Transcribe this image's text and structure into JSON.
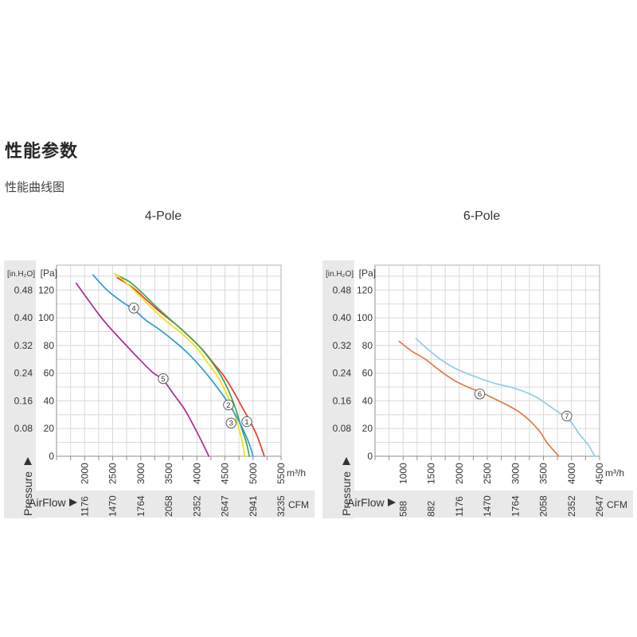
{
  "page": {
    "title": "性能参数",
    "subtitle": "性能曲线图"
  },
  "colors": {
    "band": "#e9e9e9",
    "grid": "#d8d8d8",
    "border": "#b2b2b2",
    "axis": "#8f8f8f",
    "text": "#333333",
    "circle_stroke": "#4a4a4a"
  },
  "chart_data": [
    {
      "name": "4-Pole",
      "type": "line",
      "xlabel": "AirFlow",
      "ylabel": "Pressure",
      "x_unit_primary": "m³/h",
      "x_unit_secondary": "CFM",
      "y_unit_primary": "[Pa]",
      "y_unit_secondary": "[in.H₂O]",
      "x_range": [
        1500,
        5500
      ],
      "y_range": [
        0,
        138
      ],
      "x_minor_step": 250,
      "y_minor_step": 10,
      "x_ticks_m3h": [
        "2000",
        "2500",
        "3000",
        "3500",
        "4000",
        "4500",
        "5000",
        "5500"
      ],
      "x_ticks_cfm": [
        "1176",
        "1470",
        "1764",
        "2058",
        "2352",
        "2647",
        "2941",
        "3235"
      ],
      "y_ticks_pa": [
        "120",
        "100",
        "80",
        "60",
        "40",
        "20",
        "0"
      ],
      "y_ticks_inh2o": [
        "0.48",
        "0.40",
        "0.32",
        "0.24",
        "0.16",
        "0.08"
      ],
      "series": [
        {
          "label": "1",
          "color": "#e63a2e",
          "points": [
            [
              2580,
              129
            ],
            [
              2850,
              122
            ],
            [
              3100,
              113
            ],
            [
              3350,
              104
            ],
            [
              3600,
              96
            ],
            [
              3850,
              87
            ],
            [
              4100,
              77
            ],
            [
              4300,
              67
            ],
            [
              4480,
              58
            ],
            [
              4650,
              47
            ],
            [
              4800,
              36
            ],
            [
              4950,
              25
            ],
            [
              5080,
              14
            ],
            [
              5200,
              0
            ]
          ],
          "label_at": [
            4890,
            25
          ]
        },
        {
          "label": "2",
          "color": "#3ea54b",
          "points": [
            [
              2560,
              131
            ],
            [
              2800,
              126
            ],
            [
              3050,
              117
            ],
            [
              3300,
              107
            ],
            [
              3550,
              98
            ],
            [
              3800,
              89
            ],
            [
              4050,
              79
            ],
            [
              4250,
              69
            ],
            [
              4430,
              58
            ],
            [
              4580,
              46
            ],
            [
              4700,
              33
            ],
            [
              4800,
              20
            ],
            [
              4880,
              10
            ],
            [
              4935,
              0
            ]
          ],
          "label_at": [
            4563,
            37
          ]
        },
        {
          "label": "3",
          "color": "#f2e115",
          "points": [
            [
              2535,
              132
            ],
            [
              2750,
              125
            ],
            [
              3000,
              115
            ],
            [
              3250,
              105
            ],
            [
              3500,
              96
            ],
            [
              3750,
              88
            ],
            [
              4000,
              78
            ],
            [
              4200,
              67
            ],
            [
              4380,
              57
            ],
            [
              4530,
              45
            ],
            [
              4650,
              33
            ],
            [
              4750,
              20
            ],
            [
              4810,
              10
            ],
            [
              4850,
              0
            ]
          ],
          "label_at": [
            4610,
            24
          ]
        },
        {
          "label": "4",
          "color": "#2c9cd4",
          "points": [
            [
              2150,
              131
            ],
            [
              2400,
              120
            ],
            [
              2650,
              112
            ],
            [
              2875,
              106
            ],
            [
              3100,
              98
            ],
            [
              3350,
              91
            ],
            [
              3600,
              83
            ],
            [
              3850,
              74
            ],
            [
              4100,
              63
            ],
            [
              4300,
              53
            ],
            [
              4500,
              42
            ],
            [
              4700,
              29
            ],
            [
              4850,
              17
            ],
            [
              4950,
              7
            ],
            [
              5000,
              0
            ]
          ],
          "label_at": [
            2876,
            107
          ]
        },
        {
          "label": "5",
          "color": "#a62d93",
          "points": [
            [
              1850,
              125
            ],
            [
              2080,
              112
            ],
            [
              2320,
              99
            ],
            [
              2560,
              88
            ],
            [
              2930,
              72
            ],
            [
              3200,
              61
            ],
            [
              3400,
              55
            ],
            [
              3600,
              44
            ],
            [
              3780,
              34
            ],
            [
              3930,
              23
            ],
            [
              4070,
              12
            ],
            [
              4213,
              0
            ]
          ],
          "label_at": [
            3400,
            56
          ]
        }
      ]
    },
    {
      "name": "6-Pole",
      "type": "line",
      "xlabel": "AirFlow",
      "ylabel": "Pressure",
      "x_unit_primary": "m³/h",
      "x_unit_secondary": "CFM",
      "y_unit_primary": "[Pa]",
      "y_unit_secondary": "[in.H₂O]",
      "x_range": [
        500,
        4500
      ],
      "y_range": [
        0,
        138
      ],
      "x_minor_step": 250,
      "y_minor_step": 10,
      "x_ticks_m3h": [
        "1000",
        "1500",
        "2000",
        "2500",
        "3000",
        "3500",
        "4000",
        "4500"
      ],
      "x_ticks_cfm": [
        "588",
        "882",
        "1176",
        "1470",
        "1764",
        "2058",
        "2352",
        "2647"
      ],
      "y_ticks_pa": [
        "120",
        "100",
        "80",
        "60",
        "40",
        "20",
        "0"
      ],
      "y_ticks_inh2o": [
        "0.48",
        "0.40",
        "0.32",
        "0.24",
        "0.16",
        "0.08"
      ],
      "series": [
        {
          "label": "6",
          "color": "#e07747",
          "points": [
            [
              930,
              83
            ],
            [
              1150,
              76
            ],
            [
              1400,
              70
            ],
            [
              1650,
              62
            ],
            [
              1900,
              55
            ],
            [
              2150,
              50
            ],
            [
              2400,
              46
            ],
            [
              2650,
              41
            ],
            [
              2900,
              36
            ],
            [
              3100,
              31
            ],
            [
              3300,
              24
            ],
            [
              3450,
              17
            ],
            [
              3560,
              10
            ],
            [
              3774,
              0
            ]
          ],
          "label_at": [
            2365,
            45
          ]
        },
        {
          "label": "7",
          "color": "#8fcbe9",
          "points": [
            [
              1230,
              85
            ],
            [
              1450,
              77
            ],
            [
              1700,
              69
            ],
            [
              1950,
              63
            ],
            [
              2250,
              58
            ],
            [
              2600,
              53
            ],
            [
              2990,
              49
            ],
            [
              3360,
              43
            ],
            [
              3650,
              35
            ],
            [
              3960,
              26
            ],
            [
              4140,
              16
            ],
            [
              4300,
              8
            ],
            [
              4415,
              0
            ]
          ],
          "label_at": [
            3917,
            29
          ]
        }
      ]
    }
  ]
}
